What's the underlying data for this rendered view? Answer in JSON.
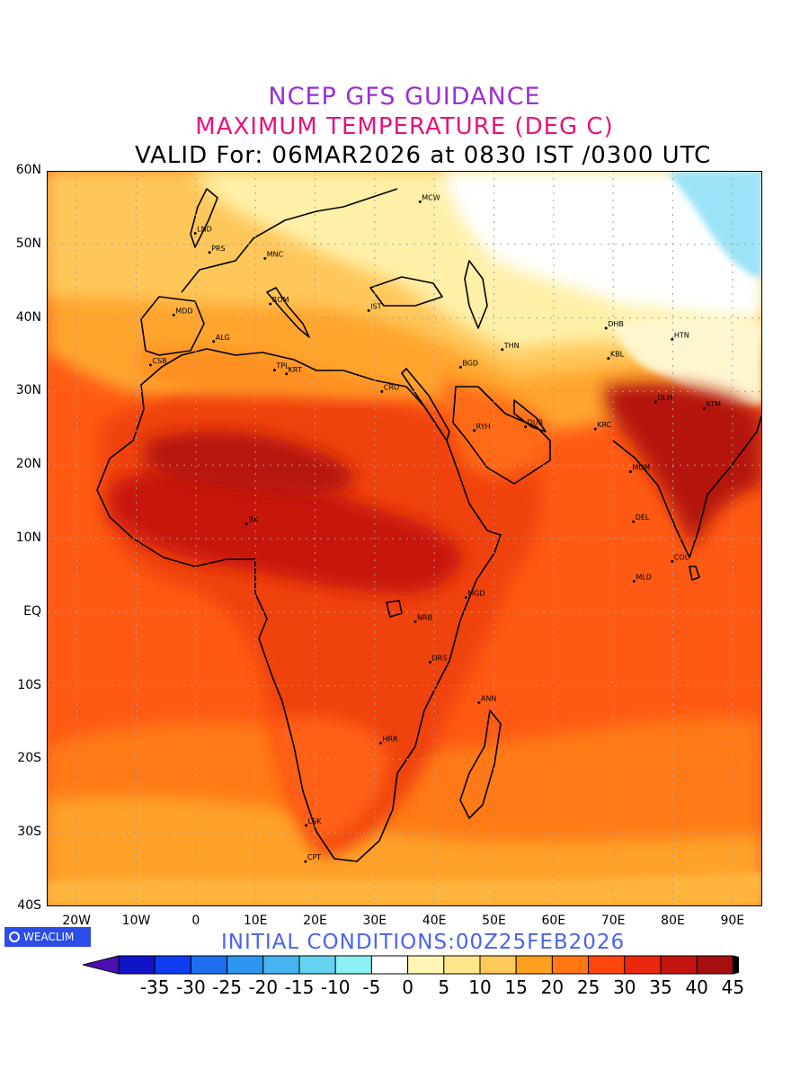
{
  "header": {
    "line1": "NCEP GFS GUIDANCE",
    "line2": "MAXIMUM TEMPERATURE (DEG C)",
    "line3": "VALID For: 06MAR2026 at 0830 IST /0300 UTC"
  },
  "map": {
    "lat_labels": [
      "60N",
      "50N",
      "40N",
      "30N",
      "20N",
      "10N",
      "EQ",
      "10S",
      "20S",
      "30S",
      "40S"
    ],
    "lon_labels": [
      "20W",
      "10W",
      "0",
      "10E",
      "20E",
      "30E",
      "40E",
      "50E",
      "60E",
      "70E",
      "80E",
      "90E"
    ],
    "stations": [
      {
        "code": "MCW",
        "lon": 37.6,
        "lat": 55.8
      },
      {
        "code": "LND",
        "lon": -0.1,
        "lat": 51.5
      },
      {
        "code": "PRS",
        "lon": 2.3,
        "lat": 48.9
      },
      {
        "code": "MNC",
        "lon": 11.6,
        "lat": 48.1
      },
      {
        "code": "ROM",
        "lon": 12.5,
        "lat": 41.9
      },
      {
        "code": "MDD",
        "lon": -3.7,
        "lat": 40.4
      },
      {
        "code": "IST",
        "lon": 29.0,
        "lat": 41.0
      },
      {
        "code": "ALG",
        "lon": 3.0,
        "lat": 36.8
      },
      {
        "code": "CSB",
        "lon": -7.6,
        "lat": 33.6
      },
      {
        "code": "TPL",
        "lon": 13.2,
        "lat": 32.9
      },
      {
        "code": "KRT",
        "lon": 15.2,
        "lat": 32.4
      },
      {
        "code": "CRO",
        "lon": 31.2,
        "lat": 30.0
      },
      {
        "code": "BGD",
        "lon": 44.4,
        "lat": 33.3
      },
      {
        "code": "THN",
        "lon": 51.4,
        "lat": 35.7
      },
      {
        "code": "DHB",
        "lon": 68.8,
        "lat": 38.6
      },
      {
        "code": "HTN",
        "lon": 79.9,
        "lat": 37.1
      },
      {
        "code": "KBL",
        "lon": 69.2,
        "lat": 34.5
      },
      {
        "code": "DLH",
        "lon": 77.1,
        "lat": 28.6
      },
      {
        "code": "KTM",
        "lon": 85.3,
        "lat": 27.7
      },
      {
        "code": "KRC",
        "lon": 67.0,
        "lat": 24.9
      },
      {
        "code": "RYH",
        "lon": 46.7,
        "lat": 24.7
      },
      {
        "code": "DUB",
        "lon": 55.3,
        "lat": 25.2
      },
      {
        "code": "MUM",
        "lon": 72.9,
        "lat": 19.1
      },
      {
        "code": "DEL",
        "lon": 73.4,
        "lat": 12.3
      },
      {
        "code": "COL",
        "lon": 79.9,
        "lat": 6.9
      },
      {
        "code": "MLD",
        "lon": 73.5,
        "lat": 4.2
      },
      {
        "code": "MGD",
        "lon": 45.3,
        "lat": 2.0
      },
      {
        "code": "NRB",
        "lon": 36.8,
        "lat": -1.3
      },
      {
        "code": "DRS",
        "lon": 39.3,
        "lat": -6.8
      },
      {
        "code": "ANN",
        "lon": 47.5,
        "lat": -12.3
      },
      {
        "code": "HRR",
        "lon": 31.0,
        "lat": -17.8
      },
      {
        "code": "LSK",
        "lon": 18.5,
        "lat": -29.0
      },
      {
        "code": "CPT",
        "lon": 18.4,
        "lat": -33.9
      },
      {
        "code": "BK",
        "lon": 8.5,
        "lat": 12.0
      }
    ]
  },
  "logo": {
    "label": "WEACLIM"
  },
  "footer": {
    "initial": "INITIAL  CONDITIONS:00Z25FEB2026"
  },
  "colorbar": {
    "labels": [
      "-35",
      "-30",
      "-25",
      "-20",
      "-15",
      "-10",
      "-5",
      "0",
      "5",
      "10",
      "15",
      "20",
      "25",
      "30",
      "35",
      "40",
      "45"
    ],
    "colors": [
      "#4b0fb4",
      "#0f14c8",
      "#0f3cf0",
      "#1e6ef0",
      "#2d96f0",
      "#46b4f0",
      "#64d2f0",
      "#8cf0f6",
      "#ffffff",
      "#fff5b4",
      "#ffe68c",
      "#ffc85a",
      "#ffa01e",
      "#ff7814",
      "#ff460f",
      "#eb280f",
      "#c3140f",
      "#a50f0f",
      "#000000"
    ]
  },
  "legend_colors": {
    "snow_cold": "#9be3f7",
    "cool": "#fff3b0",
    "mild": "#ffd070",
    "warm": "#ffa530",
    "hot": "#ff6a10",
    "very_hot": "#f0440f",
    "extreme": "#c8190f",
    "ocean_30": "#ff5a14"
  }
}
